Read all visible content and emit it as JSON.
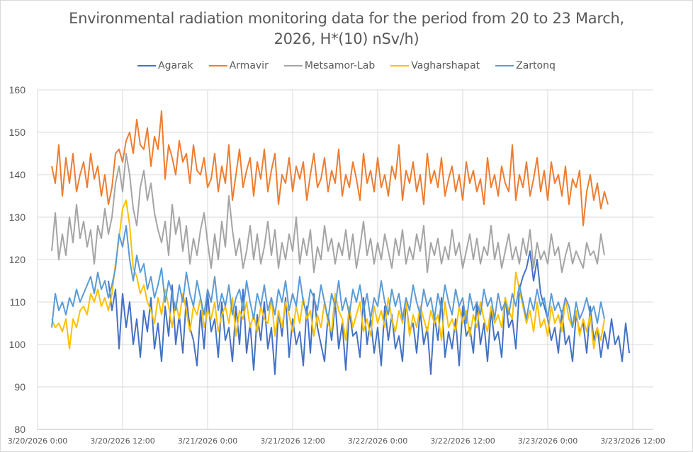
{
  "chart_data": {
    "type": "line",
    "title": "Environmental radiation monitoring data for the period from 20 to 23 March, 2026, H*(10) nSv/h)",
    "title_lines": [
      "Environmental radiation monitoring data for the period from 20 to 23 March,",
      "2026, H*(10) nSv/h)"
    ],
    "xlabel": "",
    "ylabel": "",
    "ylim": [
      80,
      160
    ],
    "yticks": [
      80,
      90,
      100,
      110,
      120,
      130,
      140,
      150,
      160
    ],
    "xlim_hours": [
      0,
      87
    ],
    "xticks": [
      {
        "hour": 0,
        "label": "3/20/2026 0:00"
      },
      {
        "hour": 12,
        "label": "3/20/2026 12:00"
      },
      {
        "hour": 24,
        "label": "3/21/2026 0:00"
      },
      {
        "hour": 36,
        "label": "3/21/2026 12:00"
      },
      {
        "hour": 48,
        "label": "3/22/2026 0:00"
      },
      {
        "hour": 60,
        "label": "3/22/2026 12:00"
      },
      {
        "hour": 72,
        "label": "3/23/2026 0:00"
      },
      {
        "hour": 84,
        "label": "3/23/2026 12:00"
      }
    ],
    "grid": true,
    "legend_position": "top",
    "x_unit": "hours since 3/20/2026 0:00",
    "series": [
      {
        "name": "Agarak",
        "color": "#4472C4",
        "start_hour": 10,
        "step_hours": 0.5,
        "values": [
          115,
          108,
          113,
          99,
          112,
          104,
          110,
          100,
          106,
          97,
          108,
          103,
          111,
          99,
          105,
          96,
          109,
          102,
          114,
          100,
          107,
          98,
          111,
          104,
          101,
          95,
          108,
          99,
          112,
          103,
          106,
          97,
          110,
          101,
          104,
          96,
          109,
          100,
          113,
          98,
          105,
          94,
          107,
          101,
          110,
          99,
          104,
          93,
          108,
          102,
          111,
          97,
          106,
          100,
          103,
          95,
          109,
          98,
          112,
          104,
          100,
          96,
          107,
          101,
          110,
          99,
          105,
          94,
          108,
          102,
          103,
          97,
          111,
          100,
          106,
          98,
          104,
          95,
          109,
          101,
          107,
          99,
          102,
          96,
          110,
          103,
          105,
          98,
          108,
          100,
          104,
          93,
          107,
          101,
          111,
          97,
          103,
          99,
          106,
          95,
          109,
          102,
          104,
          98,
          110,
          100,
          105,
          96,
          108,
          101,
          103,
          97,
          111,
          104,
          106,
          99,
          113,
          116,
          118,
          122,
          115,
          120,
          112,
          109,
          106,
          101,
          104,
          98,
          108,
          100,
          102,
          96,
          107,
          103,
          105,
          98,
          109,
          101,
          104,
          97,
          103,
          99,
          106,
          100,
          102,
          96,
          105,
          98
        ]
      },
      {
        "name": "Armavir",
        "color": "#ED7D31",
        "start_hour": 2,
        "step_hours": 0.5,
        "values": [
          142,
          138,
          147,
          135,
          144,
          138,
          145,
          136,
          140,
          143,
          137,
          145,
          139,
          142,
          135,
          140,
          133,
          137,
          145,
          146,
          143,
          148,
          150,
          145,
          153,
          147,
          146,
          151,
          142,
          149,
          146,
          155,
          139,
          147,
          144,
          140,
          148,
          143,
          145,
          138,
          147,
          141,
          140,
          144,
          137,
          139,
          145,
          136,
          142,
          138,
          147,
          134,
          140,
          146,
          137,
          141,
          144,
          135,
          143,
          139,
          146,
          136,
          141,
          145,
          133,
          140,
          138,
          144,
          136,
          142,
          139,
          143,
          134,
          140,
          145,
          137,
          139,
          144,
          136,
          141,
          138,
          146,
          135,
          140,
          137,
          143,
          139,
          134,
          145,
          138,
          141,
          136,
          144,
          137,
          140,
          135,
          142,
          139,
          147,
          134,
          141,
          138,
          143,
          136,
          140,
          133,
          145,
          138,
          141,
          137,
          144,
          135,
          139,
          142,
          136,
          140,
          134,
          143,
          138,
          141,
          136,
          139,
          133,
          144,
          137,
          140,
          135,
          142,
          138,
          136,
          147,
          134,
          140,
          137,
          143,
          135,
          139,
          144,
          136,
          141,
          134,
          143,
          138,
          140,
          135,
          142,
          133,
          139,
          137,
          141,
          128,
          136,
          140,
          134,
          138,
          132,
          136,
          133
        ]
      },
      {
        "name": "Metsamor-Lab",
        "color": "#A5A5A5",
        "start_hour": 2,
        "step_hours": 0.5,
        "values": [
          122,
          131,
          120,
          126,
          121,
          130,
          124,
          133,
          125,
          129,
          123,
          127,
          119,
          128,
          125,
          132,
          126,
          130,
          138,
          142,
          136,
          145,
          140,
          132,
          128,
          137,
          141,
          134,
          138,
          131,
          127,
          124,
          129,
          121,
          133,
          126,
          130,
          122,
          128,
          119,
          125,
          121,
          127,
          131,
          124,
          118,
          126,
          120,
          129,
          123,
          135,
          127,
          121,
          125,
          118,
          122,
          128,
          120,
          126,
          119,
          123,
          129,
          121,
          127,
          118,
          124,
          120,
          126,
          122,
          130,
          119,
          125,
          121,
          127,
          117,
          123,
          120,
          128,
          122,
          125,
          119,
          124,
          121,
          127,
          120,
          126,
          118,
          123,
          129,
          121,
          125,
          119,
          124,
          120,
          126,
          122,
          118,
          125,
          121,
          127,
          119,
          123,
          120,
          126,
          122,
          128,
          117,
          124,
          121,
          125,
          119,
          123,
          120,
          127,
          121,
          124,
          118,
          122,
          126,
          120,
          125,
          119,
          123,
          121,
          128,
          120,
          124,
          118,
          122,
          126,
          120,
          123,
          119,
          125,
          121,
          127,
          118,
          124,
          120,
          122,
          119,
          126,
          121,
          123,
          117,
          121,
          124,
          119,
          122,
          120,
          118,
          124,
          121,
          122,
          119,
          126,
          121
        ]
      },
      {
        "name": "Vagharshapat",
        "color": "#FFC000",
        "start_hour": 2,
        "step_hours": 0.5,
        "values": [
          106,
          104,
          105,
          103,
          106,
          99,
          106,
          104,
          108,
          109,
          107,
          112,
          110,
          113,
          109,
          111,
          108,
          112,
          119,
          125,
          132,
          134,
          128,
          118,
          116,
          112,
          114,
          110,
          108,
          105,
          111,
          107,
          113,
          109,
          104,
          110,
          106,
          112,
          108,
          103,
          109,
          107,
          111,
          104,
          108,
          106,
          110,
          103,
          107,
          109,
          105,
          111,
          102,
          108,
          106,
          110,
          104,
          107,
          103,
          109,
          106,
          105,
          111,
          102,
          108,
          104,
          110,
          107,
          103,
          109,
          105,
          111,
          106,
          108,
          102,
          107,
          104,
          110,
          105,
          103,
          112,
          108,
          106,
          101,
          109,
          104,
          107,
          110,
          103,
          106,
          102,
          109,
          105,
          108,
          104,
          111,
          106,
          103,
          108,
          105,
          110,
          102,
          107,
          104,
          109,
          106,
          103,
          108,
          105,
          107,
          101,
          110,
          104,
          106,
          103,
          109,
          105,
          108,
          102,
          107,
          104,
          110,
          106,
          103,
          109,
          105,
          107,
          104,
          111,
          108,
          106,
          117,
          113,
          109,
          105,
          108,
          103,
          110,
          104,
          106,
          102,
          109,
          105,
          107,
          103,
          111,
          106,
          104,
          108,
          102,
          106,
          103,
          107,
          99,
          104,
          101,
          106
        ]
      },
      {
        "name": "Zartonq",
        "color": "#5B9BD5",
        "start_hour": 2,
        "step_hours": 0.5,
        "values": [
          104,
          112,
          108,
          110,
          107,
          111,
          109,
          113,
          110,
          112,
          114,
          116,
          112,
          117,
          113,
          115,
          111,
          114,
          118,
          126,
          123,
          128,
          120,
          115,
          121,
          117,
          119,
          113,
          116,
          111,
          114,
          118,
          110,
          115,
          112,
          108,
          114,
          110,
          117,
          112,
          109,
          115,
          111,
          107,
          113,
          110,
          116,
          108,
          112,
          109,
          114,
          107,
          111,
          113,
          108,
          115,
          110,
          106,
          112,
          109,
          114,
          108,
          111,
          107,
          113,
          110,
          115,
          108,
          112,
          109,
          116,
          110,
          107,
          113,
          111,
          108,
          114,
          110,
          106,
          112,
          109,
          115,
          108,
          111,
          107,
          113,
          110,
          114,
          108,
          112,
          106,
          111,
          109,
          115,
          110,
          107,
          113,
          109,
          112,
          106,
          111,
          108,
          114,
          110,
          107,
          113,
          109,
          111,
          106,
          112,
          108,
          114,
          110,
          107,
          113,
          109,
          111,
          105,
          112,
          108,
          110,
          107,
          113,
          109,
          111,
          106,
          112,
          108,
          110,
          107,
          112,
          109,
          114,
          110,
          106,
          111,
          108,
          113,
          109,
          111,
          106,
          112,
          108,
          110,
          107,
          111,
          109,
          104,
          110,
          106,
          108,
          111,
          107,
          109,
          105,
          110,
          106
        ]
      }
    ]
  }
}
